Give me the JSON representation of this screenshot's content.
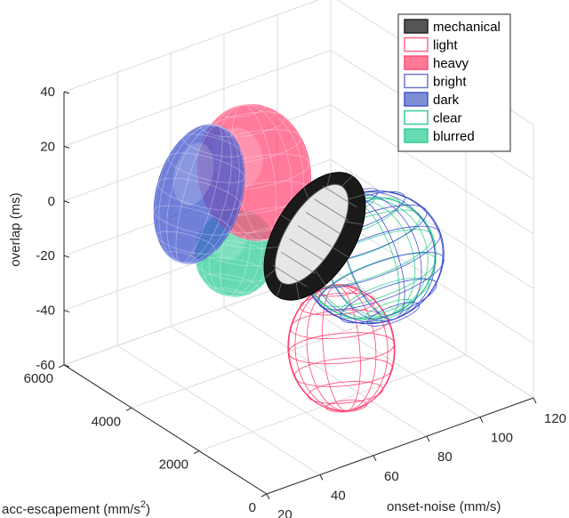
{
  "chart_data": {
    "type": "scatter3d-ellipsoids",
    "title": "",
    "xlabel": "onset-noise (mm/s)",
    "ylabel_main": "acc-escapement (mm/s",
    "ylabel_sup": "2",
    "ylabel_end": ")",
    "zlabel": "overlap (ms)",
    "xlim": [
      20,
      120
    ],
    "ylim": [
      0,
      6000
    ],
    "zlim": [
      -60,
      40
    ],
    "xticks": [
      "20",
      "40",
      "60",
      "80",
      "100",
      "120"
    ],
    "yticks": [
      "0",
      "2000",
      "4000",
      "6000"
    ],
    "zticks": [
      "-60",
      "-40",
      "-20",
      "0",
      "20",
      "40"
    ],
    "grid": true,
    "legend_position": "top-right",
    "series": [
      {
        "name": "light",
        "style": "wire",
        "color": "#ff3366",
        "center": [
          67,
          1500,
          -35
        ],
        "spread": [
          20,
          23
        ]
      },
      {
        "name": "clear",
        "style": "wire",
        "color": "#22cc88",
        "center": [
          84,
          2000,
          -12
        ],
        "spread": [
          25,
          22
        ]
      },
      {
        "name": "bright",
        "style": "wire",
        "color": "#3344cc",
        "center": [
          85,
          2000,
          -12
        ],
        "spread": [
          27,
          24
        ]
      },
      {
        "name": "blurred",
        "style": "filled",
        "color": "#33cc99",
        "center": [
          59,
          4000,
          -17
        ],
        "spread": [
          15,
          16
        ]
      },
      {
        "name": "heavy",
        "style": "filled",
        "color": "#ff4d79",
        "center": [
          66,
          4000,
          10
        ],
        "spread": [
          21,
          25
        ]
      },
      {
        "name": "dark",
        "style": "filled",
        "color": "#4055cc",
        "center": [
          58,
          5000,
          -3
        ],
        "spread": [
          16,
          26
        ]
      },
      {
        "name": "mechanical",
        "style": "filled",
        "color": "#333333",
        "center": [
          76,
          3000,
          -9
        ],
        "spread": [
          15,
          26
        ]
      }
    ],
    "legend": [
      {
        "label": "mechanical",
        "fill": "#555555",
        "stroke": "#222222"
      },
      {
        "label": "light",
        "fill": "#ffffff",
        "stroke": "#ff6688"
      },
      {
        "label": "heavy",
        "fill": "#ff7a96",
        "stroke": "#ff4d79"
      },
      {
        "label": "bright",
        "fill": "#ffffff",
        "stroke": "#6a78cc"
      },
      {
        "label": "dark",
        "fill": "#7f8fd6",
        "stroke": "#4055cc"
      },
      {
        "label": "clear",
        "fill": "#ffffff",
        "stroke": "#33cc99"
      },
      {
        "label": "blurred",
        "fill": "#66dcb0",
        "stroke": "#33cc99"
      }
    ]
  }
}
